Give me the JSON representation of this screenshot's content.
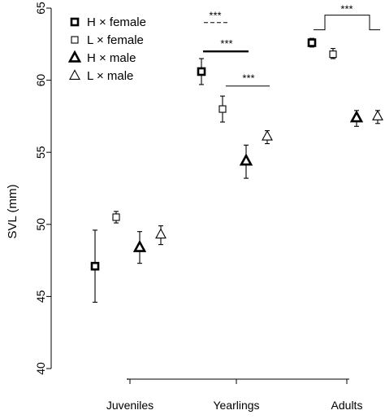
{
  "chart_data": {
    "type": "scatter",
    "ylabel": "SVL (mm)",
    "xlabel": "",
    "ylim": [
      40,
      65
    ],
    "yticks": [
      40,
      45,
      50,
      55,
      60,
      65
    ],
    "categories": [
      "Juveniles",
      "Yearlings",
      "Adults"
    ],
    "grid": false,
    "legend_position": "top-left",
    "series": [
      {
        "name": "H × female",
        "marker": "square-bold",
        "points": [
          {
            "category": "Juveniles",
            "y": 47.1,
            "lo": 44.6,
            "hi": 49.6
          },
          {
            "category": "Yearlings",
            "y": 60.6,
            "lo": 59.7,
            "hi": 61.5
          },
          {
            "category": "Adults",
            "y": 62.6,
            "lo": 62.3,
            "hi": 62.9
          }
        ]
      },
      {
        "name": "L × female",
        "marker": "square-open",
        "points": [
          {
            "category": "Juveniles",
            "y": 50.5,
            "lo": 50.1,
            "hi": 50.9
          },
          {
            "category": "Yearlings",
            "y": 58.0,
            "lo": 57.1,
            "hi": 58.9
          },
          {
            "category": "Adults",
            "y": 61.8,
            "lo": 61.5,
            "hi": 62.2
          }
        ]
      },
      {
        "name": "H × male",
        "marker": "triangle-bold",
        "points": [
          {
            "category": "Juveniles",
            "y": 48.4,
            "lo": 47.3,
            "hi": 49.5
          },
          {
            "category": "Yearlings",
            "y": 54.4,
            "lo": 53.2,
            "hi": 55.5
          },
          {
            "category": "Adults",
            "y": 57.4,
            "lo": 56.8,
            "hi": 57.9
          }
        ]
      },
      {
        "name": "L × male",
        "marker": "triangle-open",
        "points": [
          {
            "category": "Juveniles",
            "y": 49.3,
            "lo": 48.6,
            "hi": 49.9
          },
          {
            "category": "Yearlings",
            "y": 56.1,
            "lo": 55.6,
            "hi": 56.5
          },
          {
            "category": "Adults",
            "y": 57.5,
            "lo": 57.0,
            "hi": 57.9
          }
        ]
      }
    ],
    "annotations": [
      {
        "label": "***",
        "line": "dashed",
        "y": 64.0,
        "note": "Yearlings"
      },
      {
        "label": "***",
        "line": "solid-bold",
        "y": 62.0,
        "note": "Yearlings"
      },
      {
        "label": "***",
        "line": "solid",
        "y": 59.6,
        "note": "Yearlings"
      },
      {
        "label": "***",
        "line": "bracket",
        "y": 63.5,
        "note": "Adults"
      }
    ]
  }
}
